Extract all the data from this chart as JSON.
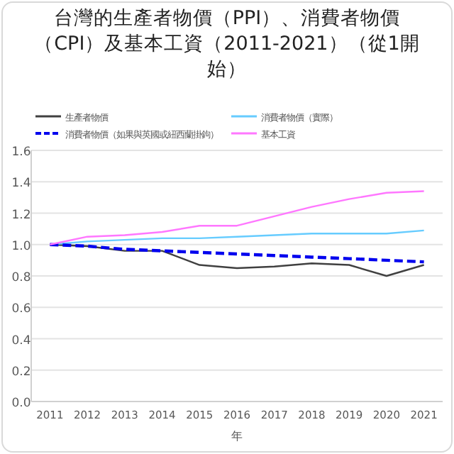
{
  "chart_data": {
    "type": "line",
    "title": "台灣的生產者物價（PPI）、消費者物價（CPI）及基本工資（2011-2021）（從1開始）",
    "xlabel": "年",
    "categories": [
      "2011",
      "2012",
      "2013",
      "2014",
      "2015",
      "2016",
      "2017",
      "2018",
      "2019",
      "2020",
      "2021"
    ],
    "series": [
      {
        "name": "生產者物價",
        "color": "#404040",
        "line_style": "solid",
        "values": [
          1.0,
          0.99,
          0.96,
          0.96,
          0.87,
          0.85,
          0.86,
          0.88,
          0.87,
          0.8,
          0.87
        ]
      },
      {
        "name": "消費者物價（實際）",
        "color": "#66ccff",
        "line_style": "solid",
        "values": [
          1.0,
          1.02,
          1.03,
          1.04,
          1.04,
          1.05,
          1.06,
          1.07,
          1.07,
          1.07,
          1.09
        ]
      },
      {
        "name": "消費者物價（如果與英國或紐西蘭掛鉤）",
        "color": "#0000ee",
        "line_style": "dashed",
        "values": [
          1.0,
          0.99,
          0.97,
          0.96,
          0.95,
          0.94,
          0.93,
          0.92,
          0.91,
          0.9,
          0.89
        ]
      },
      {
        "name": "基本工資",
        "color": "#ff77ff",
        "line_style": "solid",
        "values": [
          1.0,
          1.05,
          1.06,
          1.08,
          1.12,
          1.12,
          1.18,
          1.24,
          1.29,
          1.33,
          1.34
        ]
      }
    ],
    "ylim": [
      0,
      1.6
    ],
    "yticks": [
      {
        "value": 0,
        "label": "0.0"
      },
      0.2,
      0.4,
      0.6,
      0.8,
      {
        "value": 1,
        "label": "1.0"
      },
      1.2,
      1.4,
      1.6
    ],
    "grid": "y",
    "legend": "top",
    "marker": "none"
  }
}
